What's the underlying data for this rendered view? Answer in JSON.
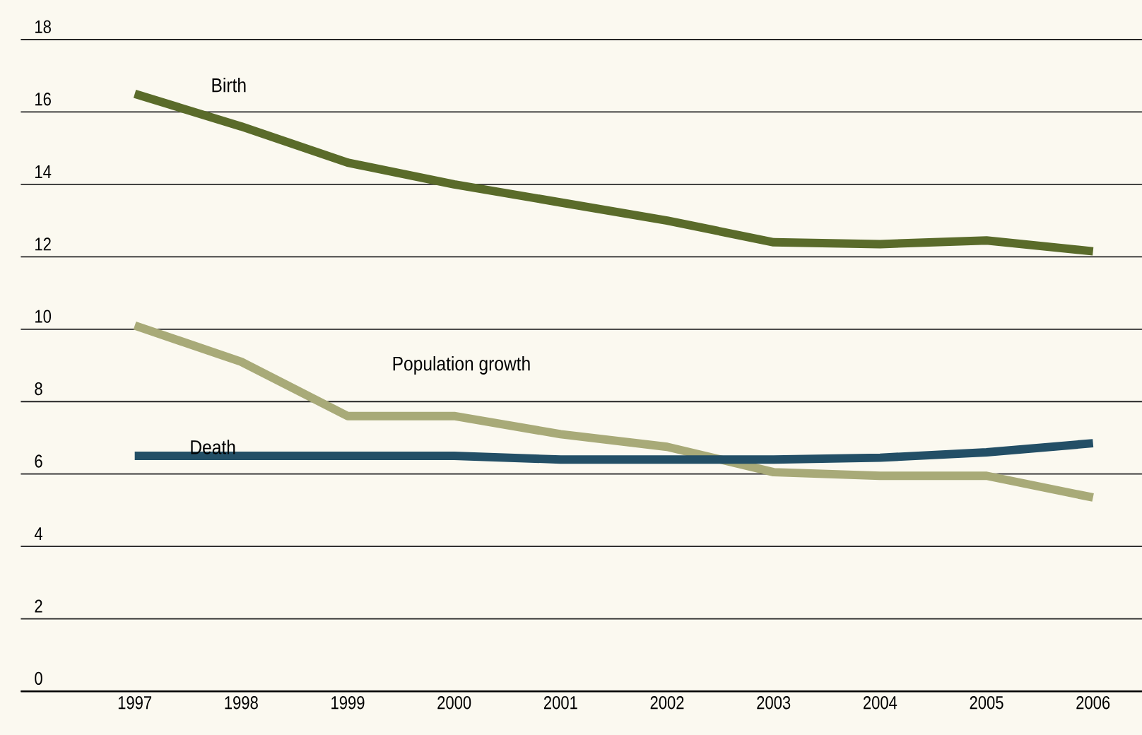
{
  "chart_data": {
    "type": "line",
    "categories": [
      "1997",
      "1998",
      "1999",
      "2000",
      "2001",
      "2002",
      "2003",
      "2004",
      "2005",
      "2006"
    ],
    "series": [
      {
        "name": "Birth",
        "color": "#5a6b2a",
        "values": [
          16.5,
          15.6,
          14.6,
          14.0,
          13.5,
          13.0,
          12.4,
          12.35,
          12.45,
          12.15
        ]
      },
      {
        "name": "Population growth",
        "color": "#a8aa78",
        "values": [
          10.1,
          9.1,
          7.6,
          7.6,
          7.1,
          6.75,
          6.05,
          5.95,
          5.95,
          5.35
        ]
      },
      {
        "name": "Death",
        "color": "#234f66",
        "values": [
          6.5,
          6.5,
          6.5,
          6.5,
          6.4,
          6.4,
          6.4,
          6.45,
          6.6,
          6.85
        ]
      }
    ],
    "ylim": [
      0,
      18
    ],
    "yticks": [
      0,
      2,
      4,
      6,
      8,
      10,
      12,
      14,
      16,
      18
    ],
    "grid": "y"
  }
}
